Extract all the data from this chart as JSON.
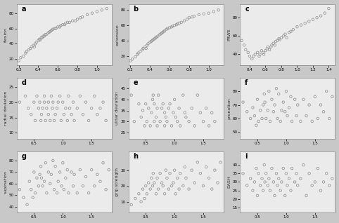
{
  "subplots": [
    {
      "label": "a",
      "ylabel": "flexion",
      "x": [
        0.2,
        0.22,
        0.25,
        0.27,
        0.28,
        0.3,
        0.32,
        0.33,
        0.35,
        0.36,
        0.37,
        0.38,
        0.4,
        0.41,
        0.42,
        0.43,
        0.44,
        0.45,
        0.46,
        0.47,
        0.48,
        0.5,
        0.51,
        0.52,
        0.53,
        0.54,
        0.55,
        0.57,
        0.58,
        0.6,
        0.62,
        0.63,
        0.65,
        0.67,
        0.68,
        0.7,
        0.72,
        0.75,
        0.78,
        0.8,
        0.83,
        0.85,
        0.9,
        0.95,
        1.0,
        1.05,
        1.1
      ],
      "y": [
        18,
        22,
        24,
        28,
        30,
        32,
        34,
        36,
        38,
        36,
        40,
        42,
        44,
        46,
        45,
        48,
        48,
        50,
        50,
        52,
        52,
        54,
        55,
        56,
        57,
        58,
        59,
        60,
        60,
        62,
        62,
        64,
        65,
        65,
        67,
        68,
        68,
        70,
        70,
        72,
        74,
        75,
        78,
        80,
        82,
        84,
        86
      ],
      "xlim": [
        0.18,
        1.15
      ],
      "ylim": [
        12,
        92
      ],
      "xticks": [
        0.2,
        0.4,
        0.6,
        0.8,
        1.0
      ],
      "yticks": [
        20,
        40,
        60,
        80
      ]
    },
    {
      "label": "b",
      "ylabel": "extension",
      "x": [
        0.2,
        0.22,
        0.25,
        0.27,
        0.28,
        0.3,
        0.32,
        0.33,
        0.35,
        0.36,
        0.37,
        0.38,
        0.4,
        0.41,
        0.42,
        0.43,
        0.44,
        0.45,
        0.46,
        0.47,
        0.48,
        0.5,
        0.51,
        0.52,
        0.53,
        0.54,
        0.55,
        0.57,
        0.58,
        0.6,
        0.62,
        0.63,
        0.65,
        0.67,
        0.68,
        0.7,
        0.72,
        0.75,
        0.78,
        0.8,
        0.83,
        0.85,
        0.9,
        0.95,
        1.0,
        1.05,
        1.1
      ],
      "y": [
        14,
        16,
        19,
        22,
        24,
        26,
        28,
        30,
        32,
        30,
        34,
        36,
        38,
        39,
        40,
        41,
        42,
        43,
        44,
        45,
        46,
        48,
        49,
        50,
        51,
        52,
        53,
        55,
        56,
        57,
        58,
        59,
        60,
        61,
        62,
        63,
        64,
        66,
        68,
        70,
        71,
        72,
        74,
        75,
        76,
        78,
        80
      ],
      "xlim": [
        0.18,
        1.15
      ],
      "ylim": [
        8,
        88
      ],
      "xticks": [
        0.2,
        0.4,
        0.6,
        0.8,
        1.0
      ],
      "yticks": [
        20,
        40,
        60,
        80
      ]
    },
    {
      "label": "c",
      "ylabel": "PRWE",
      "x": [
        0.3,
        0.33,
        0.35,
        0.38,
        0.4,
        0.43,
        0.45,
        0.47,
        0.5,
        0.52,
        0.53,
        0.55,
        0.57,
        0.58,
        0.6,
        0.62,
        0.63,
        0.65,
        0.67,
        0.68,
        0.7,
        0.72,
        0.73,
        0.75,
        0.77,
        0.78,
        0.8,
        0.83,
        0.85,
        0.87,
        0.9,
        0.92,
        0.95,
        1.0,
        1.05,
        1.1,
        1.15,
        1.2,
        1.25,
        1.3,
        1.35,
        1.4
      ],
      "y": [
        55,
        50,
        45,
        42,
        38,
        35,
        38,
        40,
        42,
        38,
        40,
        44,
        42,
        40,
        44,
        46,
        48,
        45,
        48,
        50,
        52,
        50,
        54,
        55,
        57,
        56,
        58,
        60,
        62,
        58,
        64,
        65,
        67,
        70,
        72,
        74,
        76,
        78,
        80,
        82,
        85,
        90
      ],
      "xlim": [
        0.28,
        1.48
      ],
      "ylim": [
        28,
        95
      ],
      "xticks": [
        0.4,
        0.6,
        0.8,
        1.0,
        1.2,
        1.4
      ],
      "yticks": [
        40,
        60,
        80
      ]
    },
    {
      "label": "d",
      "ylabel": "radial deviation",
      "x": [
        0.25,
        0.35,
        0.4,
        0.45,
        0.5,
        0.52,
        0.55,
        0.58,
        0.6,
        0.62,
        0.63,
        0.65,
        0.68,
        0.68,
        0.7,
        0.72,
        0.75,
        0.75,
        0.78,
        0.8,
        0.82,
        0.83,
        0.85,
        0.87,
        0.9,
        0.92,
        0.95,
        0.97,
        1.0,
        1.02,
        1.05,
        1.08,
        1.1,
        1.12,
        1.15,
        1.18,
        1.2,
        1.25,
        1.3,
        1.35,
        1.4,
        1.45,
        1.5,
        1.55,
        1.6,
        1.65,
        1.7,
        1.75
      ],
      "y": [
        20,
        22,
        18,
        16,
        20,
        14,
        22,
        18,
        20,
        14,
        16,
        18,
        22,
        20,
        14,
        18,
        20,
        16,
        14,
        22,
        18,
        20,
        14,
        16,
        18,
        20,
        22,
        14,
        20,
        16,
        18,
        14,
        22,
        18,
        16,
        20,
        14,
        18,
        22,
        16,
        20,
        14,
        18,
        22,
        16,
        18,
        20,
        14
      ],
      "xlim": [
        0.2,
        1.85
      ],
      "ylim": [
        8,
        28
      ],
      "xticks": [
        0.5,
        1.0,
        1.5
      ],
      "yticks": [
        10,
        15,
        20,
        25
      ]
    },
    {
      "label": "e",
      "ylabel": "ulnar deviation",
      "x": [
        0.25,
        0.3,
        0.38,
        0.42,
        0.45,
        0.48,
        0.5,
        0.52,
        0.55,
        0.58,
        0.6,
        0.62,
        0.63,
        0.65,
        0.65,
        0.68,
        0.7,
        0.7,
        0.72,
        0.75,
        0.78,
        0.8,
        0.83,
        0.83,
        0.85,
        0.87,
        0.9,
        0.92,
        0.95,
        0.98,
        1.0,
        1.02,
        1.05,
        1.08,
        1.1,
        1.15,
        1.18,
        1.2,
        1.25,
        1.3,
        1.35,
        1.4,
        1.45,
        1.5,
        1.55,
        1.6,
        1.65,
        1.7
      ],
      "y": [
        42,
        30,
        38,
        32,
        35,
        28,
        38,
        30,
        36,
        28,
        34,
        40,
        42,
        30,
        38,
        32,
        36,
        28,
        42,
        30,
        36,
        38,
        28,
        34,
        32,
        30,
        36,
        38,
        28,
        34,
        40,
        32,
        30,
        36,
        28,
        42,
        34,
        32,
        30,
        36,
        28,
        42,
        34,
        30,
        36,
        28,
        34,
        30
      ],
      "xlim": [
        0.2,
        1.85
      ],
      "ylim": [
        22,
        50
      ],
      "xticks": [
        0.5,
        1.0,
        1.5
      ],
      "yticks": [
        25,
        30,
        35,
        40,
        45
      ]
    },
    {
      "label": "f",
      "ylabel": "pronation",
      "x": [
        0.25,
        0.32,
        0.38,
        0.42,
        0.45,
        0.48,
        0.5,
        0.52,
        0.55,
        0.58,
        0.6,
        0.62,
        0.63,
        0.65,
        0.68,
        0.7,
        0.72,
        0.75,
        0.78,
        0.8,
        0.83,
        0.85,
        0.87,
        0.9,
        0.92,
        0.95,
        0.98,
        1.0,
        1.02,
        1.05,
        1.08,
        1.1,
        1.15,
        1.18,
        1.2,
        1.25,
        1.3,
        1.35,
        1.4,
        1.45,
        1.5,
        1.55,
        1.6,
        1.65,
        1.7,
        1.75,
        1.8
      ],
      "y": [
        72,
        65,
        60,
        68,
        62,
        55,
        74,
        58,
        66,
        60,
        70,
        78,
        72,
        60,
        66,
        80,
        58,
        74,
        65,
        70,
        82,
        60,
        78,
        58,
        66,
        72,
        65,
        80,
        62,
        68,
        76,
        58,
        74,
        62,
        70,
        58,
        74,
        62,
        70,
        58,
        76,
        60,
        70,
        65,
        80,
        60,
        76
      ],
      "xlim": [
        0.2,
        1.85
      ],
      "ylim": [
        45,
        90
      ],
      "xticks": [
        0.5,
        1.0,
        1.5
      ],
      "yticks": [
        50,
        60,
        70,
        80
      ]
    },
    {
      "label": "g",
      "ylabel": "supination",
      "x": [
        0.25,
        0.32,
        0.38,
        0.42,
        0.45,
        0.48,
        0.5,
        0.52,
        0.55,
        0.58,
        0.6,
        0.62,
        0.63,
        0.65,
        0.68,
        0.7,
        0.72,
        0.75,
        0.78,
        0.8,
        0.83,
        0.85,
        0.87,
        0.9,
        0.92,
        0.95,
        0.98,
        1.0,
        1.02,
        1.05,
        1.08,
        1.1,
        1.15,
        1.18,
        1.2,
        1.25,
        1.3,
        1.35,
        1.4,
        1.45,
        1.5,
        1.55,
        1.6,
        1.65,
        1.7,
        1.75,
        1.8
      ],
      "y": [
        55,
        48,
        42,
        62,
        55,
        48,
        70,
        52,
        65,
        58,
        68,
        75,
        65,
        58,
        62,
        78,
        52,
        70,
        60,
        68,
        80,
        55,
        75,
        52,
        62,
        70,
        58,
        78,
        55,
        65,
        72,
        52,
        70,
        58,
        68,
        52,
        72,
        58,
        66,
        52,
        72,
        58,
        68,
        62,
        78,
        55,
        72
      ],
      "xlim": [
        0.2,
        1.85
      ],
      "ylim": [
        35,
        88
      ],
      "xticks": [
        0.5,
        1.0,
        1.5
      ],
      "yticks": [
        40,
        50,
        60,
        70,
        80
      ]
    },
    {
      "label": "h",
      "ylabel": "grip strength",
      "x": [
        0.25,
        0.32,
        0.38,
        0.42,
        0.45,
        0.48,
        0.5,
        0.52,
        0.55,
        0.58,
        0.6,
        0.62,
        0.63,
        0.65,
        0.68,
        0.7,
        0.72,
        0.75,
        0.78,
        0.8,
        0.83,
        0.85,
        0.87,
        0.9,
        0.92,
        0.95,
        0.98,
        1.0,
        1.02,
        1.05,
        1.08,
        1.1,
        1.15,
        1.18,
        1.2,
        1.25,
        1.3,
        1.35,
        1.4,
        1.45,
        1.5,
        1.55,
        1.6,
        1.65,
        1.7,
        1.75,
        1.8
      ],
      "y": [
        8,
        12,
        15,
        10,
        18,
        12,
        20,
        15,
        22,
        18,
        25,
        20,
        28,
        22,
        15,
        25,
        18,
        28,
        22,
        20,
        15,
        30,
        25,
        18,
        28,
        20,
        22,
        30,
        15,
        25,
        18,
        28,
        20,
        32,
        25,
        18,
        30,
        22,
        35,
        28,
        20,
        32,
        25,
        18,
        30,
        22,
        35
      ],
      "xlim": [
        0.2,
        1.85
      ],
      "ylim": [
        3,
        42
      ],
      "xticks": [
        0.5,
        1.0,
        1.5
      ],
      "yticks": [
        10,
        20,
        30
      ]
    },
    {
      "label": "i",
      "ylabel": "DASH",
      "x": [
        0.25,
        0.32,
        0.38,
        0.42,
        0.45,
        0.48,
        0.5,
        0.52,
        0.55,
        0.58,
        0.6,
        0.62,
        0.63,
        0.65,
        0.68,
        0.7,
        0.72,
        0.75,
        0.78,
        0.8,
        0.83,
        0.85,
        0.87,
        0.9,
        0.92,
        0.95,
        0.98,
        1.0,
        1.02,
        1.05,
        1.08,
        1.1,
        1.15,
        1.18,
        1.2,
        1.25,
        1.3,
        1.35,
        1.4,
        1.45,
        1.5,
        1.55,
        1.6,
        1.65,
        1.7,
        1.75,
        1.8
      ],
      "y": [
        35,
        28,
        32,
        25,
        30,
        38,
        22,
        35,
        28,
        32,
        25,
        40,
        30,
        35,
        28,
        32,
        25,
        38,
        30,
        22,
        35,
        28,
        32,
        25,
        30,
        38,
        22,
        35,
        28,
        32,
        25,
        38,
        30,
        35,
        28,
        32,
        40,
        22,
        35,
        28,
        30,
        38,
        25,
        30,
        35,
        28,
        32
      ],
      "xlim": [
        0.2,
        1.85
      ],
      "ylim": [
        12,
        48
      ],
      "xticks": [
        0.5,
        1.0,
        1.5
      ],
      "yticks": [
        15,
        20,
        25,
        30,
        35,
        40
      ]
    }
  ],
  "marker": "o",
  "markersize": 2.5,
  "markerfacecolor": "none",
  "markeredgecolor": "#999999",
  "markeredgewidth": 0.6,
  "background_color": "#ebebeb",
  "fig_background": "#c8c8c8",
  "ylabel_fontsize": 4.5,
  "tick_fontsize": 4,
  "panel_label_fontsize": 7,
  "grid_rows": 3,
  "grid_cols": 3
}
